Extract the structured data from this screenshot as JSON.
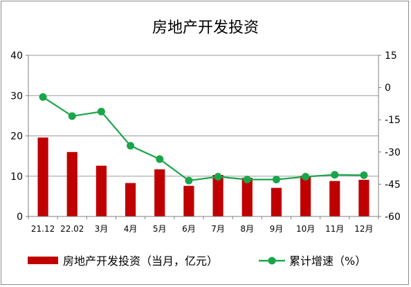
{
  "chart_data": {
    "type": "bar+line",
    "title": "房地产开发投资",
    "categories": [
      "21.12",
      "22.02",
      "3月",
      "4月",
      "5月",
      "6月",
      "7月",
      "8月",
      "9月",
      "10月",
      "11月",
      "12月"
    ],
    "series": [
      {
        "name": "房地产开发投资（当月，亿元）",
        "type": "bar",
        "axis": "left",
        "color": "#c00000",
        "values": [
          19.6,
          16.0,
          12.6,
          8.3,
          11.7,
          7.6,
          10.3,
          9.6,
          7.1,
          10.1,
          8.8,
          9.1
        ]
      },
      {
        "name": "累计增速（%）",
        "type": "line",
        "axis": "right",
        "color": "#1aa54a",
        "values": [
          -4.4,
          -13.3,
          -11.2,
          -27.1,
          -33.3,
          -43.3,
          -41.5,
          -42.8,
          -42.8,
          -41.5,
          -40.6,
          -40.8
        ]
      }
    ],
    "y_left": {
      "min": 0,
      "max": 40,
      "ticks": [
        0,
        10,
        20,
        30,
        40
      ]
    },
    "y_right": {
      "min": -60,
      "max": 15,
      "ticks": [
        15,
        0,
        -15,
        -30,
        -45,
        -60
      ]
    },
    "grid": true,
    "legend": "bottom"
  }
}
